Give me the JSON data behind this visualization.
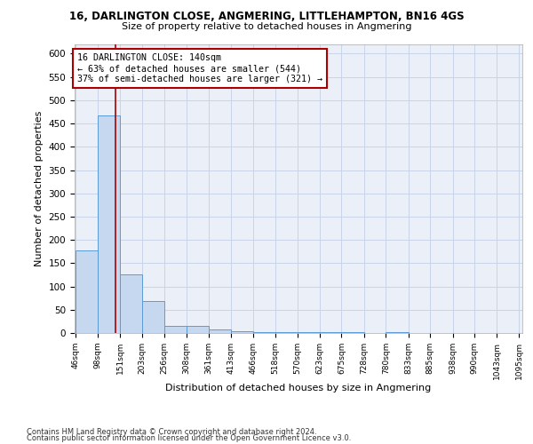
{
  "title1": "16, DARLINGTON CLOSE, ANGMERING, LITTLEHAMPTON, BN16 4GS",
  "title2": "Size of property relative to detached houses in Angmering",
  "xlabel": "Distribution of detached houses by size in Angmering",
  "ylabel": "Number of detached properties",
  "bin_edges": [
    46,
    98,
    151,
    203,
    256,
    308,
    361,
    413,
    466,
    518,
    570,
    623,
    675,
    728,
    780,
    833,
    885,
    938,
    990,
    1043,
    1095
  ],
  "bin_counts": [
    178,
    468,
    125,
    68,
    15,
    15,
    7,
    3,
    2,
    2,
    1,
    1,
    1,
    0,
    1,
    0,
    0,
    0,
    0,
    0
  ],
  "bar_color": "#c5d8f0",
  "bar_edge_color": "#5b9bd5",
  "property_size": 140,
  "red_line_color": "#aa0000",
  "annotation_line1": "16 DARLINGTON CLOSE: 140sqm",
  "annotation_line2": "← 63% of detached houses are smaller (544)",
  "annotation_line3": "37% of semi-detached houses are larger (321) →",
  "ylim": [
    0,
    620
  ],
  "yticks": [
    0,
    50,
    100,
    150,
    200,
    250,
    300,
    350,
    400,
    450,
    500,
    550,
    600
  ],
  "footer1": "Contains HM Land Registry data © Crown copyright and database right 2024.",
  "footer2": "Contains public sector information licensed under the Open Government Licence v3.0.",
  "grid_color": "#c8d4e8",
  "bg_color": "#eaeff8"
}
